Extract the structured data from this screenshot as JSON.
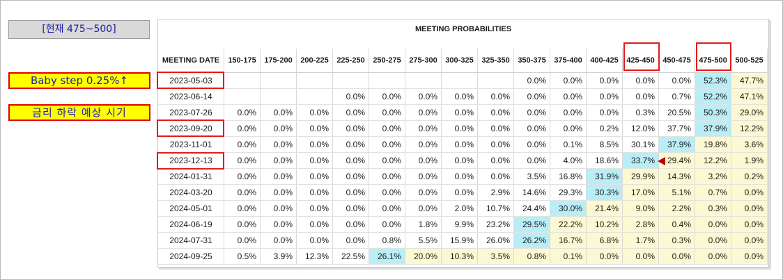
{
  "sidebar": {
    "current_label": "[현재 475~500]",
    "note_baby_step": "Baby step 0.25%↑",
    "note_rate_cut": "금리 하락 예상 시기"
  },
  "table": {
    "title": "MEETING PROBABILITIES",
    "date_header": "MEETING DATE",
    "columns": [
      "150-175",
      "175-200",
      "200-225",
      "225-250",
      "250-275",
      "275-300",
      "300-325",
      "325-350",
      "350-375",
      "375-400",
      "400-425",
      "425-450",
      "450-475",
      "475-500",
      "500-525"
    ],
    "rows": [
      {
        "date": "2023-05-03",
        "cells": [
          "",
          "",
          "",
          "",
          "",
          "",
          "",
          "",
          "0.0%",
          "0.0%",
          "0.0%",
          "0.0%",
          "0.0%",
          "52.3%",
          "47.7%"
        ]
      },
      {
        "date": "2023-06-14",
        "cells": [
          "",
          "",
          "",
          "0.0%",
          "0.0%",
          "0.0%",
          "0.0%",
          "0.0%",
          "0.0%",
          "0.0%",
          "0.0%",
          "0.0%",
          "0.7%",
          "52.2%",
          "47.1%"
        ]
      },
      {
        "date": "2023-07-26",
        "cells": [
          "0.0%",
          "0.0%",
          "0.0%",
          "0.0%",
          "0.0%",
          "0.0%",
          "0.0%",
          "0.0%",
          "0.0%",
          "0.0%",
          "0.0%",
          "0.3%",
          "20.5%",
          "50.3%",
          "29.0%"
        ]
      },
      {
        "date": "2023-09-20",
        "cells": [
          "0.0%",
          "0.0%",
          "0.0%",
          "0.0%",
          "0.0%",
          "0.0%",
          "0.0%",
          "0.0%",
          "0.0%",
          "0.0%",
          "0.2%",
          "12.0%",
          "37.7%",
          "37.9%",
          "12.2%"
        ]
      },
      {
        "date": "2023-11-01",
        "cells": [
          "0.0%",
          "0.0%",
          "0.0%",
          "0.0%",
          "0.0%",
          "0.0%",
          "0.0%",
          "0.0%",
          "0.0%",
          "0.1%",
          "8.5%",
          "30.1%",
          "37.9%",
          "19.8%",
          "3.6%"
        ]
      },
      {
        "date": "2023-12-13",
        "cells": [
          "0.0%",
          "0.0%",
          "0.0%",
          "0.0%",
          "0.0%",
          "0.0%",
          "0.0%",
          "0.0%",
          "0.0%",
          "4.0%",
          "18.6%",
          "33.7%",
          "29.4%",
          "12.2%",
          "1.9%"
        ]
      },
      {
        "date": "2024-01-31",
        "cells": [
          "0.0%",
          "0.0%",
          "0.0%",
          "0.0%",
          "0.0%",
          "0.0%",
          "0.0%",
          "0.0%",
          "3.5%",
          "16.8%",
          "31.9%",
          "29.9%",
          "14.3%",
          "3.2%",
          "0.2%"
        ]
      },
      {
        "date": "2024-03-20",
        "cells": [
          "0.0%",
          "0.0%",
          "0.0%",
          "0.0%",
          "0.0%",
          "0.0%",
          "0.0%",
          "2.9%",
          "14.6%",
          "29.3%",
          "30.3%",
          "17.0%",
          "5.1%",
          "0.7%",
          "0.0%"
        ]
      },
      {
        "date": "2024-05-01",
        "cells": [
          "0.0%",
          "0.0%",
          "0.0%",
          "0.0%",
          "0.0%",
          "0.0%",
          "2.0%",
          "10.7%",
          "24.4%",
          "30.0%",
          "21.4%",
          "9.0%",
          "2.2%",
          "0.3%",
          "0.0%"
        ]
      },
      {
        "date": "2024-06-19",
        "cells": [
          "0.0%",
          "0.0%",
          "0.0%",
          "0.0%",
          "0.0%",
          "1.8%",
          "9.9%",
          "23.2%",
          "29.5%",
          "22.2%",
          "10.2%",
          "2.8%",
          "0.4%",
          "0.0%",
          "0.0%"
        ]
      },
      {
        "date": "2024-07-31",
        "cells": [
          "0.0%",
          "0.0%",
          "0.0%",
          "0.0%",
          "0.8%",
          "5.5%",
          "15.9%",
          "26.0%",
          "26.2%",
          "16.7%",
          "6.8%",
          "1.7%",
          "0.3%",
          "0.0%",
          "0.0%"
        ]
      },
      {
        "date": "2024-09-25",
        "cells": [
          "0.5%",
          "3.9%",
          "12.3%",
          "22.5%",
          "26.1%",
          "20.0%",
          "10.3%",
          "3.5%",
          "0.8%",
          "0.1%",
          "0.0%",
          "0.0%",
          "0.0%",
          "0.0%",
          "0.0%"
        ]
      }
    ],
    "cell_colors": {
      "max": "#b9eef6",
      "tail": "#fbf8d2",
      "highlight_border": "#e01b1b"
    }
  }
}
